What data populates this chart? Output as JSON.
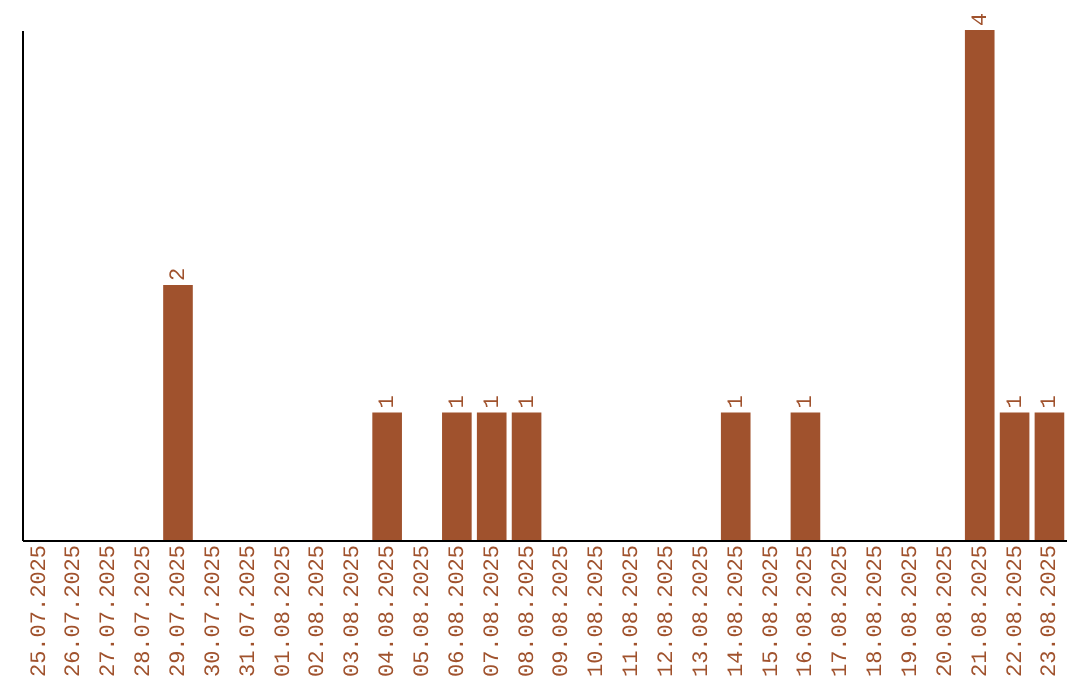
{
  "chart_data": {
    "type": "bar",
    "categories": [
      "25.07.2025",
      "26.07.2025",
      "27.07.2025",
      "28.07.2025",
      "29.07.2025",
      "30.07.2025",
      "31.07.2025",
      "01.08.2025",
      "02.08.2025",
      "03.08.2025",
      "04.08.2025",
      "05.08.2025",
      "06.08.2025",
      "07.08.2025",
      "08.08.2025",
      "09.08.2025",
      "10.08.2025",
      "11.08.2025",
      "12.08.2025",
      "13.08.2025",
      "14.08.2025",
      "15.08.2025",
      "16.08.2025",
      "17.08.2025",
      "18.08.2025",
      "19.08.2025",
      "20.08.2025",
      "21.08.2025",
      "22.08.2025",
      "23.08.2025"
    ],
    "values": [
      0,
      0,
      0,
      0,
      2,
      0,
      0,
      0,
      0,
      0,
      1,
      0,
      1,
      1,
      1,
      0,
      0,
      0,
      0,
      0,
      1,
      0,
      1,
      0,
      0,
      0,
      0,
      4,
      1,
      1
    ],
    "value_labels": [
      null,
      null,
      null,
      null,
      "2",
      null,
      null,
      null,
      null,
      null,
      "1",
      null,
      "1",
      "1",
      "1",
      null,
      null,
      null,
      null,
      null,
      "1",
      null,
      "1",
      null,
      null,
      null,
      null,
      "4",
      "1",
      "1"
    ],
    "color": "#a0522d",
    "tick_labels": "x"
  }
}
